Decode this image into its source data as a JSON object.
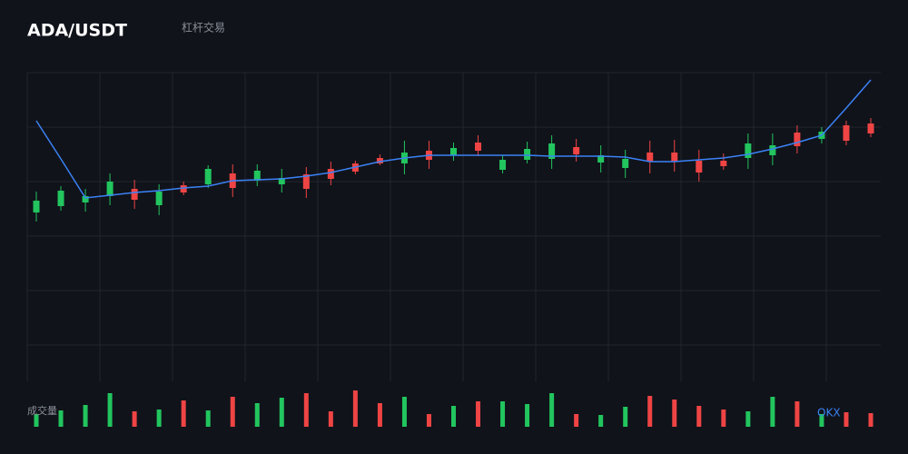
{
  "chart_data": {
    "type": "candlestick",
    "title": "ADA/USDT",
    "subtitle": "杠杆交易",
    "open": [
      186,
      193,
      197,
      204,
      212,
      194,
      216,
      217,
      229,
      221,
      217,
      228,
      234,
      240,
      246,
      240,
      254,
      249,
      263,
      233,
      244,
      245,
      258,
      241,
      235,
      252,
      252,
      243,
      243,
      246,
      249,
      274,
      267,
      282,
      284
    ],
    "high": [
      209,
      215,
      212,
      229,
      222,
      217,
      220,
      238,
      239,
      239,
      234,
      236,
      242,
      243,
      250,
      265,
      265,
      263,
      271,
      249,
      264,
      271,
      267,
      260,
      255,
      265,
      266,
      255,
      251,
      273,
      273,
      282,
      280,
      287,
      290
    ],
    "low": [
      176,
      188,
      187,
      194,
      190,
      183,
      205,
      213,
      203,
      215,
      208,
      202,
      216,
      228,
      238,
      228,
      234,
      243,
      248,
      229,
      240,
      234,
      242,
      230,
      224,
      229,
      231,
      220,
      233,
      234,
      238,
      251,
      262,
      260,
      269
    ],
    "close": [
      199,
      210,
      204,
      220,
      200,
      209,
      208,
      234,
      213,
      232,
      224,
      212,
      223,
      231,
      240,
      252,
      244,
      257,
      254,
      244,
      256,
      262,
      250,
      249,
      245,
      242,
      242,
      230,
      237,
      262,
      260,
      259,
      275,
      265,
      273
    ],
    "up_color": "#22c55e",
    "down_color": "#ef4444",
    "ma": {
      "color": "#3b82f6",
      "values": [
        287,
        245,
        202,
        205,
        208,
        210,
        213,
        215,
        221,
        222,
        223,
        226,
        230,
        236,
        242,
        246,
        249,
        249,
        249,
        249,
        249,
        248,
        248,
        248,
        247,
        242,
        242,
        244,
        246,
        250,
        256,
        263,
        271,
        301,
        332
      ]
    },
    "volume": {
      "label": "成交量",
      "values": [
        14,
        18,
        24,
        37,
        17,
        19,
        29,
        18,
        33,
        26,
        32,
        37,
        17,
        40,
        26,
        33,
        14,
        23,
        28,
        28,
        25,
        37,
        14,
        13,
        22,
        34,
        30,
        23,
        19,
        17,
        33,
        28,
        14,
        16,
        15
      ]
    },
    "watermark": "OKX",
    "ylim": [
      0,
      340
    ],
    "volume_lim": [
      0,
      50
    ],
    "grid": true
  }
}
